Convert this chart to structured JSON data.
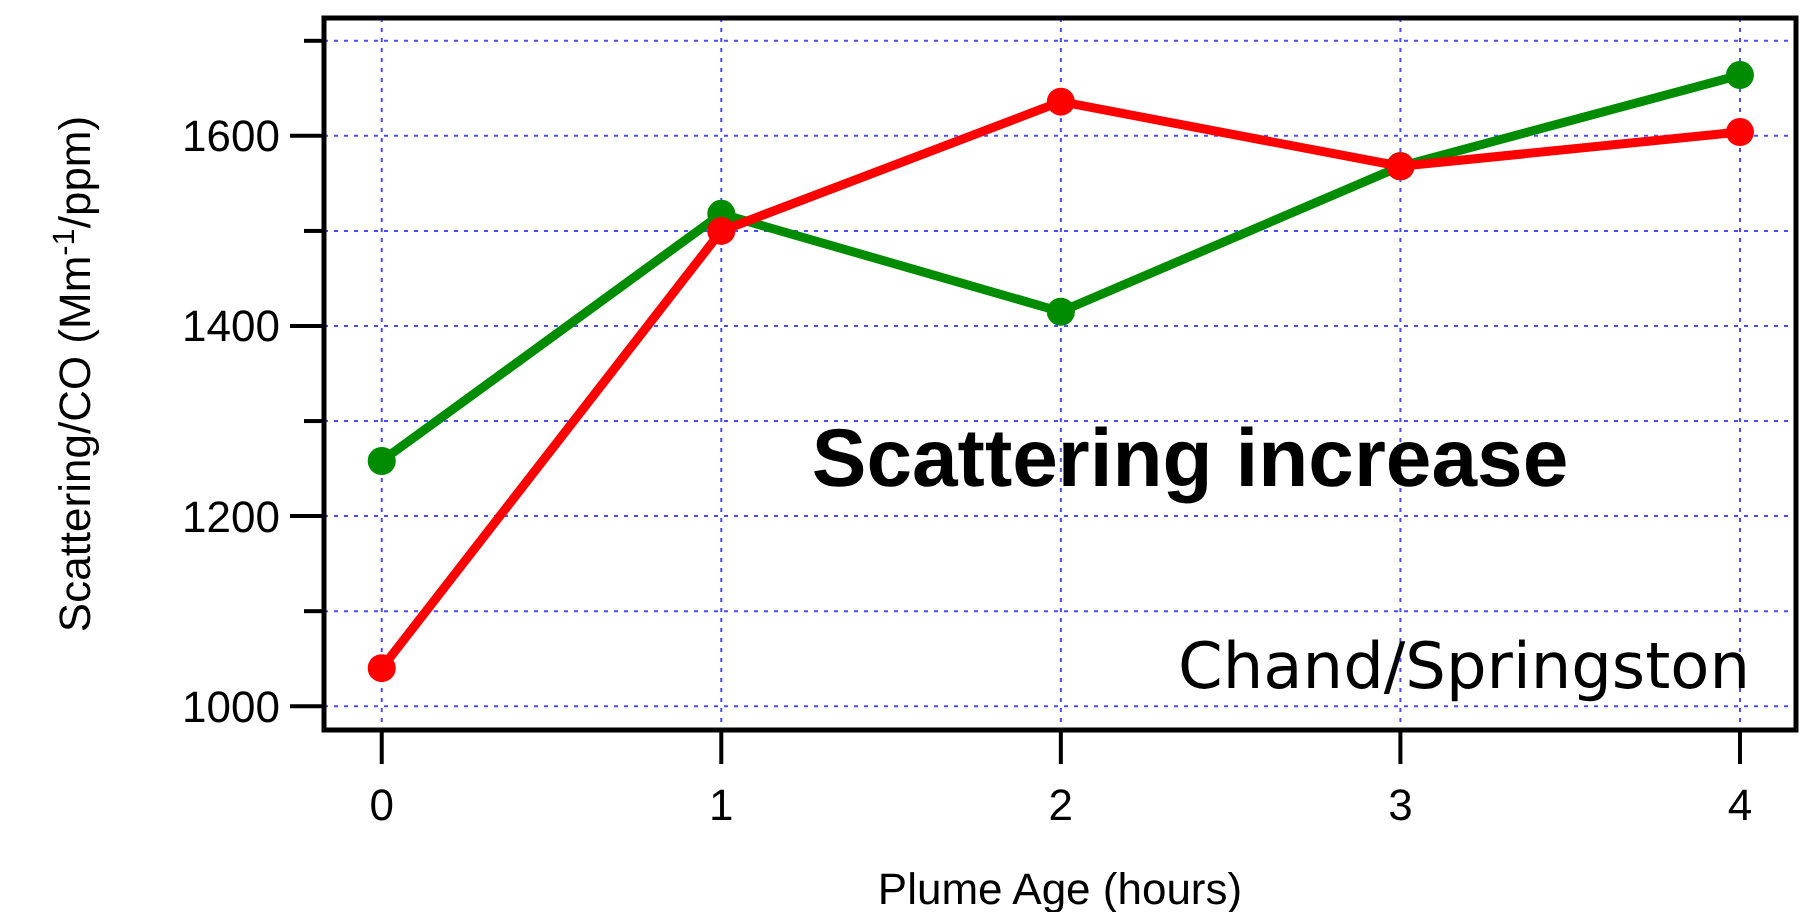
{
  "chart_data": {
    "type": "line",
    "xlabel": "Plume Age (hours)",
    "ylabel": "Scattering/CO  (Mm$^{-1}$/ppm)",
    "x": [
      0,
      1,
      2,
      3,
      4
    ],
    "series": [
      {
        "color": "#008c00",
        "values": [
          1258,
          1518,
          1415,
          1568,
          1664
        ]
      },
      {
        "color": "#ff0000",
        "values": [
          1040,
          1500,
          1636,
          1568,
          1604
        ]
      }
    ],
    "xlim": [
      -0.17,
      4.165
    ],
    "xticks": [
      0,
      1,
      2,
      3,
      4
    ],
    "ylim": [
      975,
      1724
    ],
    "yticks": [
      1000,
      {
        "value": 1100,
        "label": null
      },
      1200,
      {
        "value": 1300,
        "label": null
      },
      1400,
      {
        "value": 1500,
        "label": null
      },
      1600,
      {
        "value": 1700,
        "label": null
      }
    ],
    "grid": true,
    "marker": "circle",
    "line_style": "solid",
    "annotations": [
      "Scattering increase",
      "Chand/Springston"
    ]
  }
}
